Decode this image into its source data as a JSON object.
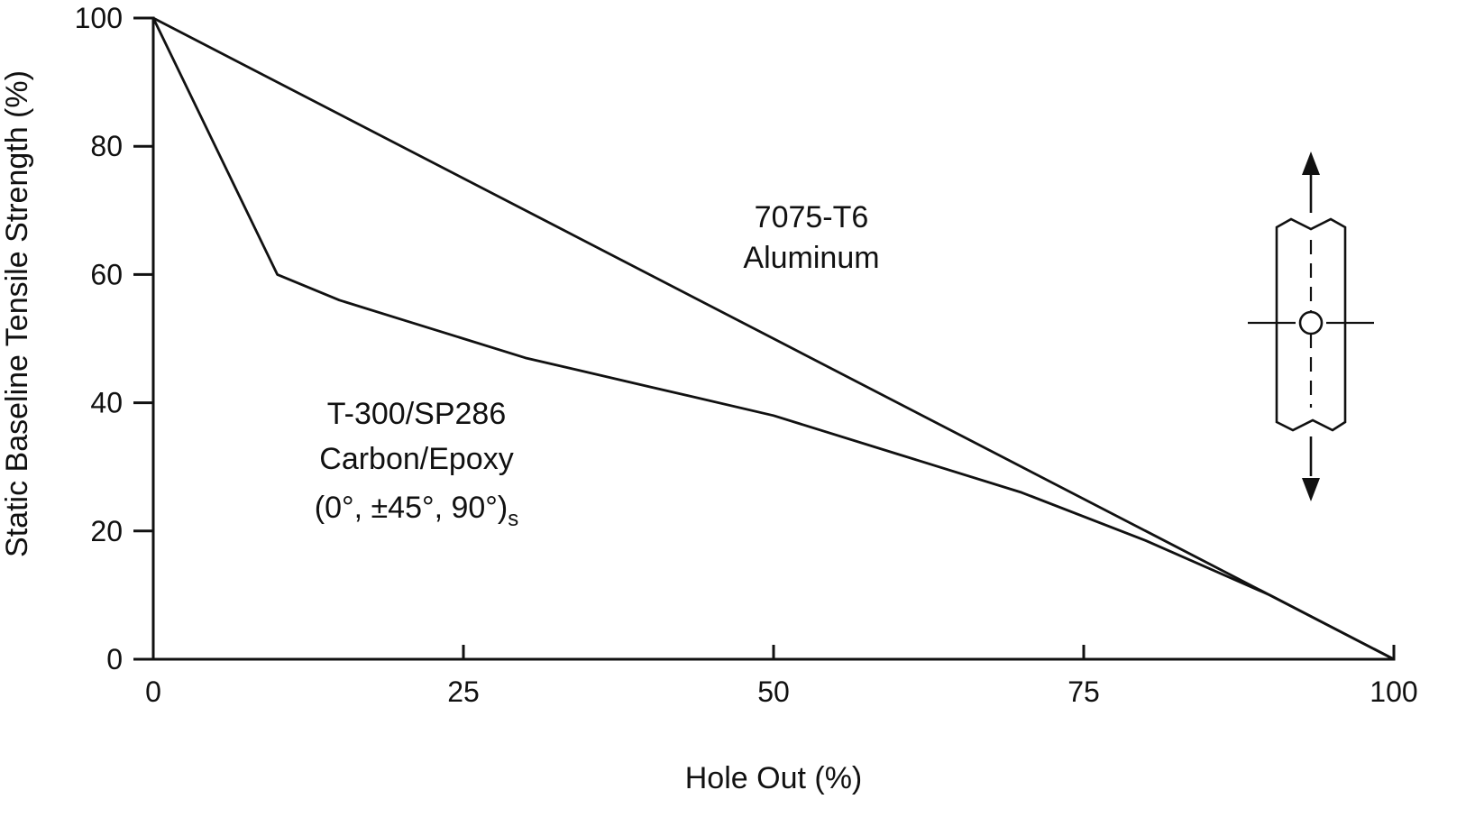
{
  "chart_data": {
    "type": "line",
    "title": "",
    "xlabel": "Hole Out (%)",
    "ylabel": "Static Baseline Tensile Strength (%)",
    "xlim": [
      0,
      100
    ],
    "ylim": [
      0,
      100
    ],
    "x_ticks": [
      0,
      25,
      50,
      75,
      100
    ],
    "y_ticks": [
      0,
      20,
      40,
      60,
      80,
      100
    ],
    "grid": false,
    "legend_position": "inline-labels",
    "series": [
      {
        "name": "7075-T6 Aluminum",
        "label_lines": [
          "7075-T6",
          "Aluminum"
        ],
        "x": [
          0,
          100
        ],
        "y": [
          100,
          0
        ]
      },
      {
        "name": "T-300/SP286 Carbon/Epoxy (0°, ±45°, 90°)s",
        "label_lines": [
          "T-300/SP286",
          "Carbon/Epoxy",
          "(0°, ±45°, 90°)"
        ],
        "label_subscript": "s",
        "x": [
          0,
          10,
          15,
          20,
          25,
          30,
          40,
          50,
          60,
          70,
          80,
          90,
          100
        ],
        "y": [
          100,
          60,
          56,
          53,
          50,
          47,
          42.5,
          38,
          32,
          26,
          18.5,
          10,
          0
        ]
      }
    ],
    "icons": {
      "specimen": "open-hole-tension-specimen-icon"
    },
    "accent_color": "#111111",
    "background_color": "#ffffff"
  }
}
